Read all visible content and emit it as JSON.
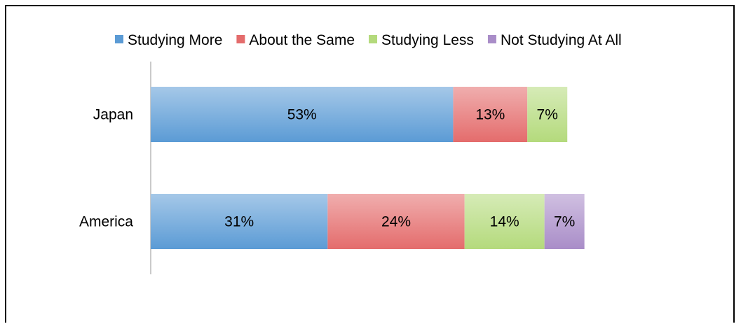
{
  "chart_data": {
    "type": "bar",
    "orientation": "horizontal",
    "stacked": true,
    "categories": [
      "Japan",
      "America"
    ],
    "series": [
      {
        "name": "Studying More",
        "values": [
          53,
          31
        ],
        "labels": [
          "53%",
          "31%"
        ],
        "color": "#5b9bd5"
      },
      {
        "name": "About the Same",
        "values": [
          13,
          24
        ],
        "labels": [
          "13%",
          "24%"
        ],
        "color": "#e46c6c"
      },
      {
        "name": "Studying Less",
        "values": [
          7,
          14
        ],
        "labels": [
          "7%",
          "14%"
        ],
        "color": "#b4da7c"
      },
      {
        "name": "Not Studying At All",
        "values": [
          0,
          7
        ],
        "labels": [
          "",
          "7%"
        ],
        "color": "#a98dc8"
      }
    ],
    "xlim": [
      0,
      100
    ],
    "grid": false,
    "legend_position": "top"
  }
}
